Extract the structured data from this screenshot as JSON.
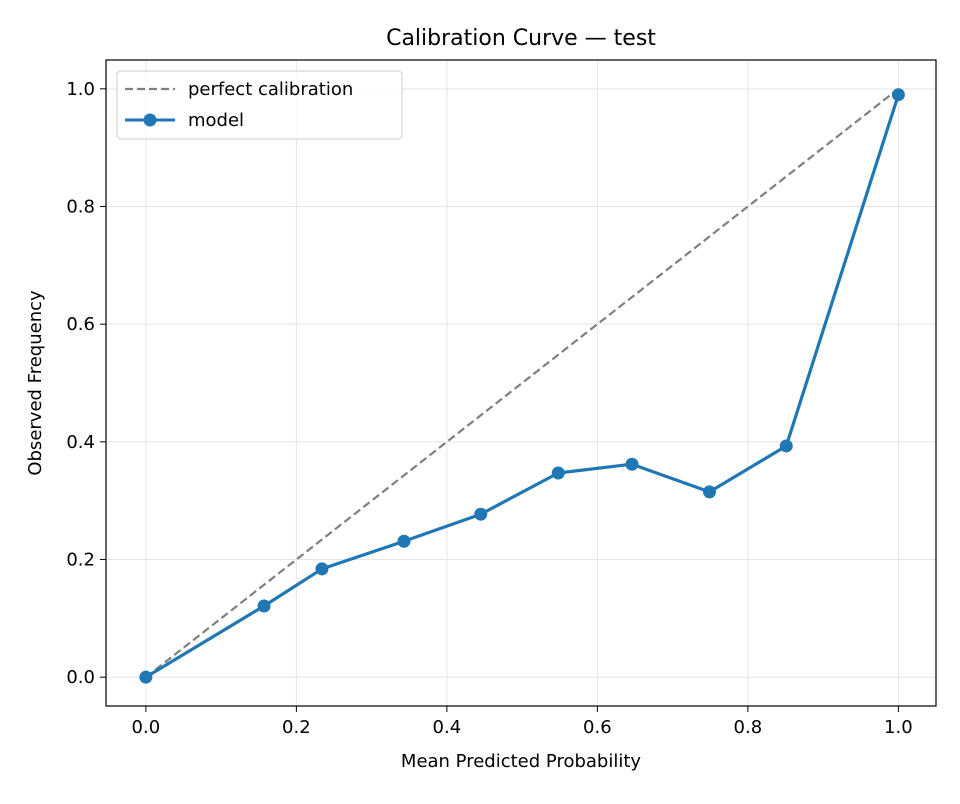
{
  "chart_data": {
    "type": "line",
    "title": "Calibration Curve — test",
    "xlabel": "Mean Predicted Probability",
    "ylabel": "Observed Frequency",
    "xlim": [
      -0.053,
      1.05
    ],
    "ylim": [
      -0.049,
      1.049
    ],
    "xticks": [
      "0.0",
      "0.2",
      "0.4",
      "0.6",
      "0.8",
      "1.0"
    ],
    "yticks": [
      "0.0",
      "0.2",
      "0.4",
      "0.6",
      "0.8",
      "1.0"
    ],
    "grid": true,
    "legend_position": "top-left",
    "series": [
      {
        "name": "perfect calibration",
        "style": "dashed",
        "color": "#7f7f7f",
        "x": [
          0,
          1
        ],
        "y": [
          0,
          1
        ]
      },
      {
        "name": "model",
        "style": "solid-with-markers",
        "color": "#1f77b4",
        "x": [
          0.0,
          0.157,
          0.234,
          0.343,
          0.445,
          0.548,
          0.646,
          0.749,
          0.851,
          1.0
        ],
        "y": [
          0.0,
          0.121,
          0.184,
          0.231,
          0.277,
          0.347,
          0.362,
          0.315,
          0.393,
          0.99
        ]
      }
    ]
  }
}
